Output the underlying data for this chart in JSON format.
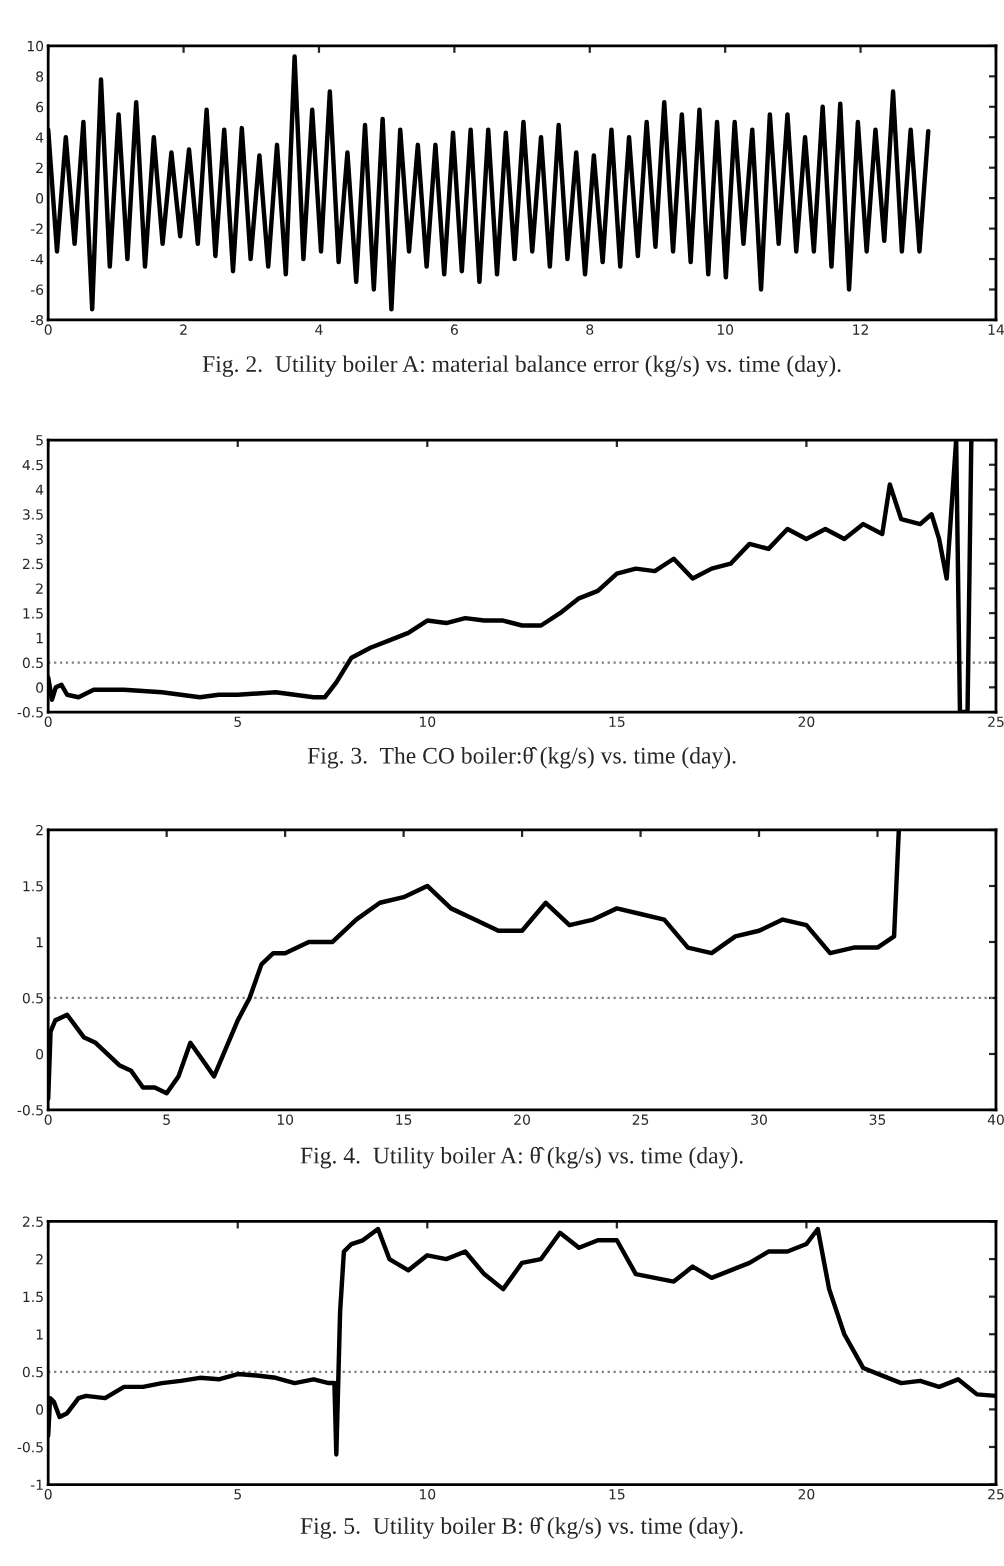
{
  "chart_data": [
    {
      "type": "line",
      "title": "Fig. 2.  Utility boiler A: material balance error (kg/s) vs. time (day).",
      "color": "#000000",
      "grid": false,
      "x": [
        0,
        0.13,
        0.26,
        0.39,
        0.52,
        0.65,
        0.78,
        0.91,
        1.04,
        1.17,
        1.3,
        1.43,
        1.56,
        1.69,
        1.82,
        1.95,
        2.08,
        2.21,
        2.34,
        2.47,
        2.6,
        2.73,
        2.86,
        2.99,
        3.12,
        3.25,
        3.38,
        3.51,
        3.64,
        3.77,
        3.9,
        4.03,
        4.16,
        4.29,
        4.42,
        4.55,
        4.68,
        4.81,
        4.94,
        5.07,
        5.2,
        5.33,
        5.46,
        5.59,
        5.72,
        5.85,
        5.98,
        6.11,
        6.24,
        6.37,
        6.5,
        6.63,
        6.76,
        6.89,
        7.02,
        7.15,
        7.28,
        7.41,
        7.54,
        7.67,
        7.8,
        7.93,
        8.06,
        8.19,
        8.32,
        8.45,
        8.58,
        8.71,
        8.84,
        8.97,
        9.1,
        9.23,
        9.36,
        9.49,
        9.62,
        9.75,
        9.88,
        10.01,
        10.14,
        10.27,
        10.4,
        10.53,
        10.66,
        10.79,
        10.92,
        11.05,
        11.18,
        11.31,
        11.44,
        11.57,
        11.7,
        11.83,
        11.96,
        12.09,
        12.22,
        12.35,
        12.48,
        12.61,
        12.74,
        12.87,
        13.0
      ],
      "values": [
        4.5,
        -3.5,
        4,
        -3,
        5,
        -7.3,
        7.8,
        -4.5,
        5.5,
        -4,
        6.3,
        -4.5,
        4,
        -3,
        3,
        -2.5,
        3.2,
        -3,
        5.8,
        -3.8,
        4.5,
        -4.8,
        4.6,
        -4,
        2.8,
        -4.5,
        3.5,
        -5,
        9.3,
        -4,
        5.8,
        -3.5,
        7,
        -4.2,
        3,
        -5.5,
        4.8,
        -6,
        5.2,
        -7.3,
        4.5,
        -3.5,
        3.5,
        -4.5,
        3.5,
        -5,
        4.3,
        -4.8,
        4.5,
        -5.5,
        4.5,
        -5,
        4.3,
        -4,
        5,
        -3.5,
        4,
        -4.5,
        4.8,
        -4,
        3,
        -5,
        2.8,
        -4.2,
        4.5,
        -4.5,
        4,
        -3.8,
        5,
        -3.2,
        6.3,
        -3.5,
        5.5,
        -4.2,
        5.8,
        -5,
        5,
        -5.2,
        5,
        -3,
        4.5,
        -6,
        5.5,
        -3,
        5.5,
        -3.5,
        4,
        -3.5,
        6,
        -4.5,
        6.2,
        -6,
        5,
        -3.5,
        4.5,
        -2.8,
        7,
        -3.5,
        4.5,
        -3.5,
        4.4
      ],
      "xlim": [
        0,
        14
      ],
      "ylim": [
        -8,
        10
      ],
      "xticks": [
        0,
        2,
        4,
        6,
        8,
        10,
        12,
        14
      ],
      "yticks": [
        -8,
        -6,
        -4,
        -2,
        0,
        2,
        4,
        6,
        8,
        10
      ]
    },
    {
      "type": "line",
      "title": "Fig. 3.  The CO boiler:θ̂ (kg/s) vs. time (day).",
      "color": "#000000",
      "grid": false,
      "x": [
        0,
        0.1,
        0.2,
        0.35,
        0.5,
        0.8,
        1.2,
        2,
        3,
        4,
        4.5,
        5,
        6,
        7,
        7.3,
        7.6,
        8,
        8.5,
        9,
        9.5,
        10,
        10.5,
        11,
        11.5,
        12,
        12.5,
        13,
        13.5,
        14,
        14.5,
        15,
        15.5,
        16,
        16.5,
        17,
        17.5,
        18,
        18.5,
        19,
        19.5,
        20,
        20.5,
        21,
        21.5,
        22,
        22.2,
        22.5,
        23,
        23.3,
        23.5,
        23.7,
        23.95,
        24.05,
        24.25,
        24.35
      ],
      "values": [
        0.2,
        -0.25,
        0,
        0.05,
        -0.15,
        -0.2,
        -0.05,
        -0.05,
        -0.1,
        -0.2,
        -0.15,
        -0.15,
        -0.1,
        -0.2,
        -0.2,
        0.1,
        0.6,
        0.8,
        0.95,
        1.1,
        1.35,
        1.3,
        1.4,
        1.35,
        1.35,
        1.25,
        1.25,
        1.5,
        1.8,
        1.95,
        2.3,
        2.4,
        2.35,
        2.6,
        2.2,
        2.4,
        2.5,
        2.9,
        2.8,
        3.2,
        3.0,
        3.2,
        3.0,
        3.3,
        3.1,
        4.1,
        3.4,
        3.3,
        3.5,
        3.0,
        2.2,
        5,
        -0.5,
        -0.5,
        5
      ],
      "xlim": [
        0,
        25
      ],
      "ylim": [
        -0.5,
        5
      ],
      "xticks": [
        0,
        5,
        10,
        15,
        20,
        25
      ],
      "yticks": [
        -0.5,
        0,
        0.5,
        1,
        1.5,
        2,
        2.5,
        3,
        3.5,
        4,
        4.5,
        5
      ],
      "ref_lines": [
        {
          "axis": "y",
          "value": 0.5,
          "color": "#808080",
          "line_style": "dotted"
        }
      ]
    },
    {
      "type": "line",
      "title": "Fig. 4.  Utility boiler A: θ̂ (kg/s) vs. time (day).",
      "color": "#000000",
      "grid": false,
      "x": [
        0,
        0.1,
        0.3,
        0.8,
        1.5,
        2,
        3,
        3.5,
        4,
        4.5,
        5,
        5.5,
        6,
        6.5,
        7,
        7.5,
        8,
        8.5,
        9,
        9.5,
        10,
        11,
        12,
        13,
        14,
        15,
        16,
        17,
        18,
        19,
        20,
        21,
        22,
        23,
        24,
        25,
        26,
        27,
        28,
        29,
        30,
        31,
        32,
        33,
        34,
        35,
        35.7,
        35.9
      ],
      "values": [
        -0.4,
        0.2,
        0.3,
        0.35,
        0.15,
        0.1,
        -0.1,
        -0.15,
        -0.3,
        -0.3,
        -0.35,
        -0.2,
        0.1,
        -0.05,
        -0.2,
        0.05,
        0.3,
        0.5,
        0.8,
        0.9,
        0.9,
        1.0,
        1.0,
        1.2,
        1.35,
        1.4,
        1.5,
        1.3,
        1.2,
        1.1,
        1.1,
        1.35,
        1.15,
        1.2,
        1.3,
        1.25,
        1.2,
        0.95,
        0.9,
        1.05,
        1.1,
        1.2,
        1.15,
        0.9,
        0.95,
        0.95,
        1.05,
        2
      ],
      "xlim": [
        0,
        40
      ],
      "ylim": [
        -0.5,
        2
      ],
      "xticks": [
        0,
        5,
        10,
        15,
        20,
        25,
        30,
        35,
        40
      ],
      "yticks": [
        -0.5,
        0,
        0.5,
        1,
        1.5,
        2
      ],
      "ref_lines": [
        {
          "axis": "y",
          "value": 0.5,
          "color": "#808080",
          "line_style": "dotted"
        }
      ]
    },
    {
      "type": "line",
      "title": "Fig. 5.  Utility boiler B: θ̂ (kg/s) vs. time (day).",
      "color": "#000000",
      "grid": false,
      "x": [
        0,
        0.05,
        0.15,
        0.3,
        0.5,
        0.8,
        1,
        1.5,
        2,
        2.5,
        3,
        3.5,
        4,
        4.5,
        5,
        5.5,
        6,
        6.5,
        7,
        7.4,
        7.55,
        7.6,
        7.7,
        7.8,
        8,
        8.3,
        8.7,
        9,
        9.5,
        10,
        10.5,
        11,
        11.5,
        12,
        12.5,
        13,
        13.5,
        14,
        14.5,
        15,
        15.5,
        16,
        16.5,
        17,
        17.5,
        18,
        18.5,
        19,
        19.5,
        20,
        20.3,
        20.6,
        21,
        21.5,
        22,
        22.5,
        23,
        23.5,
        24,
        24.5,
        25
      ],
      "values": [
        -0.35,
        0.15,
        0.1,
        -0.1,
        -0.05,
        0.15,
        0.18,
        0.15,
        0.3,
        0.3,
        0.35,
        0.38,
        0.42,
        0.4,
        0.47,
        0.45,
        0.42,
        0.35,
        0.4,
        0.35,
        0.35,
        -0.6,
        1.3,
        2.1,
        2.2,
        2.25,
        2.4,
        2.0,
        1.85,
        2.05,
        2.0,
        2.1,
        1.8,
        1.6,
        1.95,
        2.0,
        2.35,
        2.15,
        2.25,
        2.25,
        1.8,
        1.75,
        1.7,
        1.9,
        1.75,
        1.85,
        1.95,
        2.1,
        2.1,
        2.2,
        2.4,
        1.6,
        1.0,
        0.55,
        0.45,
        0.35,
        0.38,
        0.3,
        0.4,
        0.2,
        0.18
      ],
      "xlim": [
        0,
        25
      ],
      "ylim": [
        -1,
        2.5
      ],
      "xticks": [
        0,
        5,
        10,
        15,
        20,
        25
      ],
      "yticks": [
        -1,
        -0.5,
        0,
        0.5,
        1,
        1.5,
        2,
        2.5
      ],
      "ref_lines": [
        {
          "axis": "y",
          "value": 0.5,
          "color": "#808080",
          "line_style": "dotted"
        }
      ]
    }
  ]
}
